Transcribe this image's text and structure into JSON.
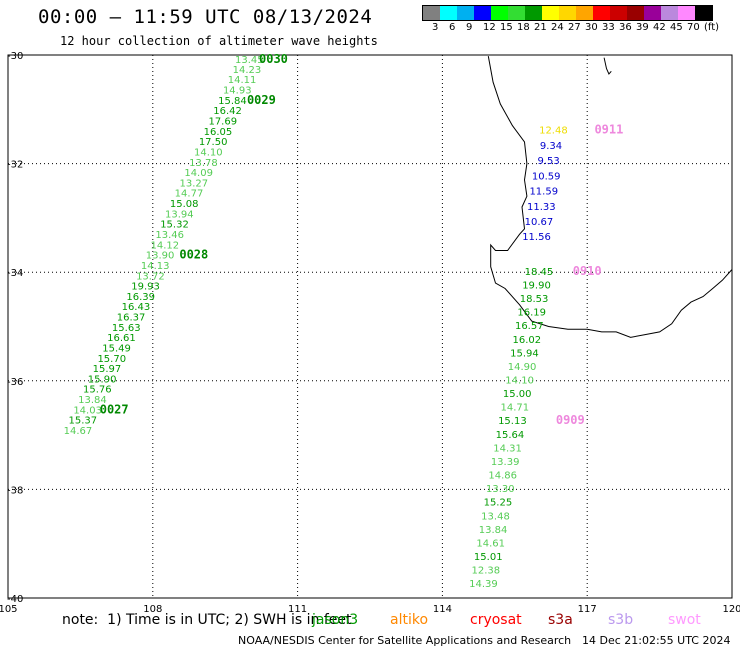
{
  "title": "00:00 — 11:59 UTC 08/13/2024",
  "subtitle": "12 hour collection of altimeter wave heights",
  "color_scale": {
    "labels": [
      "3",
      "6",
      "9",
      "12",
      "15",
      "18",
      "21",
      "24",
      "27",
      "30",
      "33",
      "36",
      "39",
      "42",
      "45",
      "70",
      "(ft)"
    ],
    "colors": [
      "#808080",
      "#00ffff",
      "#00b0f0",
      "#0000ff",
      "#00ff00",
      "#33dd33",
      "#009900",
      "#ffff00",
      "#ffd700",
      "#ffa500",
      "#ff0000",
      "#cc0000",
      "#990000",
      "#990099",
      "#bb88dd",
      "#ff88ff",
      "#000000"
    ]
  },
  "map": {
    "lon_ticks": [
      "105",
      "108",
      "111",
      "114",
      "117",
      "120"
    ],
    "lat_ticks": [
      "-30",
      "-32",
      "-34",
      "-36",
      "-38",
      "-40"
    ],
    "lon_range": [
      105,
      120
    ],
    "lat_range": [
      -40,
      -30
    ]
  },
  "tracks": [
    {
      "points": [
        {
          "lon": 110.0,
          "lat": -30.15,
          "swh": "13.45",
          "color": "#55cc55"
        },
        {
          "lon": 109.95,
          "lat": -30.33,
          "swh": "14.23",
          "color": "#55cc55"
        },
        {
          "lon": 109.85,
          "lat": -30.52,
          "swh": "14.11",
          "color": "#55cc55"
        },
        {
          "lon": 109.75,
          "lat": -30.71,
          "swh": "14.93",
          "color": "#55cc55"
        },
        {
          "lon": 109.65,
          "lat": -30.9,
          "swh": "15.84",
          "color": "#009900"
        },
        {
          "lon": 109.55,
          "lat": -31.09,
          "swh": "16.42",
          "color": "#009900"
        },
        {
          "lon": 109.45,
          "lat": -31.28,
          "swh": "17.69",
          "color": "#009900"
        },
        {
          "lon": 109.35,
          "lat": -31.47,
          "swh": "16.05",
          "color": "#009900"
        },
        {
          "lon": 109.25,
          "lat": -31.66,
          "swh": "17.50",
          "color": "#009900"
        },
        {
          "lon": 109.15,
          "lat": -31.85,
          "swh": "14.10",
          "color": "#55cc55"
        },
        {
          "lon": 109.05,
          "lat": -32.04,
          "swh": "13.78",
          "color": "#55cc55"
        },
        {
          "lon": 108.95,
          "lat": -32.23,
          "swh": "14.09",
          "color": "#55cc55"
        },
        {
          "lon": 108.85,
          "lat": -32.42,
          "swh": "13.27",
          "color": "#55cc55"
        },
        {
          "lon": 108.75,
          "lat": -32.61,
          "swh": "14.77",
          "color": "#55cc55"
        },
        {
          "lon": 108.65,
          "lat": -32.8,
          "swh": "15.08",
          "color": "#009900"
        },
        {
          "lon": 108.55,
          "lat": -32.99,
          "swh": "13.94",
          "color": "#55cc55"
        },
        {
          "lon": 108.45,
          "lat": -33.18,
          "swh": "15.32",
          "color": "#009900"
        },
        {
          "lon": 108.35,
          "lat": -33.37,
          "swh": "13.46",
          "color": "#55cc55"
        },
        {
          "lon": 108.25,
          "lat": -33.56,
          "swh": "14.12",
          "color": "#55cc55"
        },
        {
          "lon": 108.15,
          "lat": -33.75,
          "swh": "13.90",
          "color": "#55cc55"
        },
        {
          "lon": 108.05,
          "lat": -33.94,
          "swh": "14.13",
          "color": "#55cc55"
        },
        {
          "lon": 107.95,
          "lat": -34.13,
          "swh": "13.72",
          "color": "#55cc55"
        },
        {
          "lon": 107.85,
          "lat": -34.32,
          "swh": "19.93",
          "color": "#009900"
        },
        {
          "lon": 107.75,
          "lat": -34.51,
          "swh": "16.39",
          "color": "#009900"
        },
        {
          "lon": 107.65,
          "lat": -34.7,
          "swh": "16.43",
          "color": "#009900"
        },
        {
          "lon": 107.55,
          "lat": -34.89,
          "swh": "16.37",
          "color": "#009900"
        },
        {
          "lon": 107.45,
          "lat": -35.08,
          "swh": "15.63",
          "color": "#009900"
        },
        {
          "lon": 107.35,
          "lat": -35.27,
          "swh": "16.61",
          "color": "#009900"
        },
        {
          "lon": 107.25,
          "lat": -35.46,
          "swh": "15.49",
          "color": "#009900"
        },
        {
          "lon": 107.15,
          "lat": -35.65,
          "swh": "15.70",
          "color": "#009900"
        },
        {
          "lon": 107.05,
          "lat": -35.84,
          "swh": "15.97",
          "color": "#009900"
        },
        {
          "lon": 106.95,
          "lat": -36.03,
          "swh": "15.90",
          "color": "#009900"
        },
        {
          "lon": 106.85,
          "lat": -36.22,
          "swh": "15.76",
          "color": "#009900"
        },
        {
          "lon": 106.75,
          "lat": -36.41,
          "swh": "13.84",
          "color": "#55cc55"
        },
        {
          "lon": 106.65,
          "lat": -36.6,
          "swh": "14.03",
          "color": "#55cc55"
        },
        {
          "lon": 106.55,
          "lat": -36.79,
          "swh": "15.37",
          "color": "#009900"
        },
        {
          "lon": 106.45,
          "lat": -36.98,
          "swh": "14.67",
          "color": "#55cc55"
        }
      ],
      "time_labels": [
        {
          "text": "0030",
          "lon": 110.5,
          "lat": -30.15
        },
        {
          "text": "0029",
          "lon": 110.25,
          "lat": -30.9
        },
        {
          "text": "0028",
          "lon": 108.85,
          "lat": -33.75
        },
        {
          "text": "0027",
          "lon": 107.2,
          "lat": -36.6
        }
      ]
    },
    {
      "points": [
        {
          "lon": 116.3,
          "lat": -31.45,
          "swh": "12.48",
          "color": "#eedd00"
        },
        {
          "lon": 116.25,
          "lat": -31.73,
          "swh": "9.34",
          "color": "#0000cc"
        },
        {
          "lon": 116.2,
          "lat": -32.01,
          "swh": "9.53",
          "color": "#0000cc"
        },
        {
          "lon": 116.15,
          "lat": -32.29,
          "swh": "10.59",
          "color": "#0000cc"
        },
        {
          "lon": 116.1,
          "lat": -32.57,
          "swh": "11.59",
          "color": "#0000cc"
        },
        {
          "lon": 116.05,
          "lat": -32.85,
          "swh": "11.33",
          "color": "#0000cc"
        },
        {
          "lon": 116.0,
          "lat": -33.13,
          "swh": "10.67",
          "color": "#0000cc"
        },
        {
          "lon": 115.95,
          "lat": -33.41,
          "swh": "11.56",
          "color": "#0000cc"
        }
      ],
      "time_labels": [
        {
          "text": "0911",
          "lon": 117.45,
          "lat": -31.45
        }
      ]
    },
    {
      "points": [
        {
          "lon": 116.0,
          "lat": -34.05,
          "swh": "18.45",
          "color": "#009900"
        },
        {
          "lon": 115.95,
          "lat": -34.3,
          "swh": "19.90",
          "color": "#009900"
        },
        {
          "lon": 115.9,
          "lat": -34.55,
          "swh": "18.53",
          "color": "#009900"
        },
        {
          "lon": 115.85,
          "lat": -34.8,
          "swh": "16.19",
          "color": "#009900"
        },
        {
          "lon": 115.8,
          "lat": -35.05,
          "swh": "16.57",
          "color": "#009900"
        },
        {
          "lon": 115.75,
          "lat": -35.3,
          "swh": "16.02",
          "color": "#009900"
        },
        {
          "lon": 115.7,
          "lat": -35.55,
          "swh": "15.94",
          "color": "#009900"
        },
        {
          "lon": 115.65,
          "lat": -35.8,
          "swh": "14.90",
          "color": "#55cc55"
        },
        {
          "lon": 115.6,
          "lat": -36.05,
          "swh": "14.10",
          "color": "#55cc55"
        },
        {
          "lon": 115.55,
          "lat": -36.3,
          "swh": "15.00",
          "color": "#009900"
        },
        {
          "lon": 115.5,
          "lat": -36.55,
          "swh": "14.71",
          "color": "#55cc55"
        },
        {
          "lon": 115.45,
          "lat": -36.8,
          "swh": "15.13",
          "color": "#009900"
        },
        {
          "lon": 115.4,
          "lat": -37.05,
          "swh": "15.64",
          "color": "#009900"
        },
        {
          "lon": 115.35,
          "lat": -37.3,
          "swh": "14.31",
          "color": "#55cc55"
        },
        {
          "lon": 115.3,
          "lat": -37.55,
          "swh": "13.39",
          "color": "#55cc55"
        },
        {
          "lon": 115.25,
          "lat": -37.8,
          "swh": "14.86",
          "color": "#55cc55"
        },
        {
          "lon": 115.2,
          "lat": -38.05,
          "swh": "13.30",
          "color": "#55cc55"
        },
        {
          "lon": 115.15,
          "lat": -38.3,
          "swh": "15.25",
          "color": "#009900"
        },
        {
          "lon": 115.1,
          "lat": -38.55,
          "swh": "13.48",
          "color": "#55cc55"
        },
        {
          "lon": 115.05,
          "lat": -38.8,
          "swh": "13.84",
          "color": "#55cc55"
        },
        {
          "lon": 115.0,
          "lat": -39.05,
          "swh": "14.61",
          "color": "#55cc55"
        },
        {
          "lon": 114.95,
          "lat": -39.3,
          "swh": "15.01",
          "color": "#009900"
        },
        {
          "lon": 114.9,
          "lat": -39.55,
          "swh": "12.38",
          "color": "#55cc55"
        },
        {
          "lon": 114.85,
          "lat": -39.8,
          "swh": "14.39",
          "color": "#55cc55"
        }
      ],
      "time_labels": [
        {
          "text": "0910",
          "lon": 117.0,
          "lat": -34.05
        },
        {
          "text": "0909",
          "lon": 116.65,
          "lat": -36.8
        }
      ]
    }
  ],
  "coastline": [
    [
      114.95,
      -30.02
    ],
    [
      115.05,
      -30.5
    ],
    [
      115.2,
      -30.9
    ],
    [
      115.45,
      -31.3
    ],
    [
      115.7,
      -31.6
    ],
    [
      115.75,
      -32.0
    ],
    [
      115.7,
      -32.3
    ],
    [
      115.75,
      -32.6
    ],
    [
      115.65,
      -32.8
    ],
    [
      115.7,
      -33.2
    ],
    [
      115.6,
      -33.3
    ],
    [
      115.35,
      -33.6
    ],
    [
      115.1,
      -33.6
    ],
    [
      115.0,
      -33.5
    ],
    [
      115.0,
      -33.9
    ],
    [
      115.1,
      -34.2
    ],
    [
      115.3,
      -34.3
    ],
    [
      115.6,
      -34.6
    ],
    [
      115.85,
      -34.9
    ],
    [
      116.2,
      -35.0
    ],
    [
      116.6,
      -35.05
    ],
    [
      117.0,
      -35.05
    ],
    [
      117.3,
      -35.1
    ],
    [
      117.6,
      -35.1
    ],
    [
      117.9,
      -35.2
    ],
    [
      118.2,
      -35.15
    ],
    [
      118.5,
      -35.1
    ],
    [
      118.75,
      -34.95
    ],
    [
      118.95,
      -34.7
    ],
    [
      119.15,
      -34.55
    ],
    [
      119.4,
      -34.45
    ],
    [
      119.6,
      -34.3
    ],
    [
      119.8,
      -34.15
    ],
    [
      120.0,
      -33.95
    ]
  ],
  "island": [
    [
      117.35,
      -30.05
    ],
    [
      117.4,
      -30.25
    ],
    [
      117.45,
      -30.35
    ],
    [
      117.5,
      -30.3
    ]
  ],
  "note": "note:  1) Time is in UTC; 2) SWH is in feet",
  "missions": [
    {
      "name": "jason3",
      "color": "#009900"
    },
    {
      "name": "altiko",
      "color": "#ff8800"
    },
    {
      "name": "cryosat",
      "color": "#ff0000"
    },
    {
      "name": "s3a",
      "color": "#990000"
    },
    {
      "name": "s3b",
      "color": "#bb99ee"
    },
    {
      "name": "swot",
      "color": "#ff99ff"
    }
  ],
  "credit": "NOAA/NESDIS Center for Satellite Applications and Research",
  "generated": "14 Dec 21:02:55 UTC 2024"
}
